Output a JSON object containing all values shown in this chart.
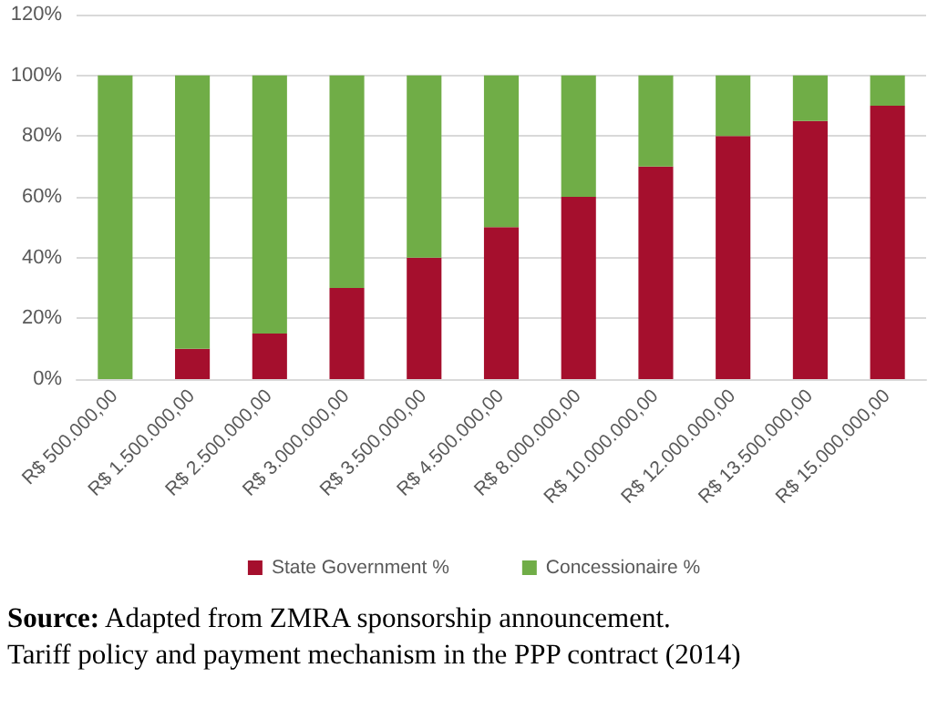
{
  "chart_data": {
    "type": "bar",
    "stacked": true,
    "categories": [
      "R$ 500.000,00",
      "R$ 1.500.000,00",
      "R$ 2.500.000,00",
      "R$ 3.000.000,00",
      "R$ 3.500.000,00",
      "R$ 4.500.000,00",
      "R$ 8.000.000,00",
      "R$ 10.000.000,00",
      "R$ 12.000.000,00",
      "R$ 13.500.000,00",
      "R$ 15.000.000,00"
    ],
    "series": [
      {
        "name": "State Government %",
        "color": "#a50f2d",
        "values": [
          0,
          10,
          15,
          30,
          40,
          50,
          60,
          70,
          80,
          85,
          90
        ]
      },
      {
        "name": "Concessionaire %",
        "color": "#70ad47",
        "values": [
          100,
          90,
          85,
          70,
          60,
          50,
          40,
          30,
          20,
          15,
          10
        ]
      }
    ],
    "ylim": [
      0,
      120
    ],
    "yticks": [
      {
        "value": 0,
        "label": "0%"
      },
      {
        "value": 20,
        "label": "20%"
      },
      {
        "value": 40,
        "label": "40%"
      },
      {
        "value": 60,
        "label": "60%"
      },
      {
        "value": 80,
        "label": "80%"
      },
      {
        "value": 100,
        "label": "100%"
      },
      {
        "value": 120,
        "label": "120%"
      }
    ],
    "grid": "y",
    "legend": "bottom",
    "marker": "square",
    "annotations": [
      "Source: Adapted from ZMRA sponsorship announcement.",
      "Tariff policy and payment mechanism in the PPP contract (2014)"
    ]
  }
}
